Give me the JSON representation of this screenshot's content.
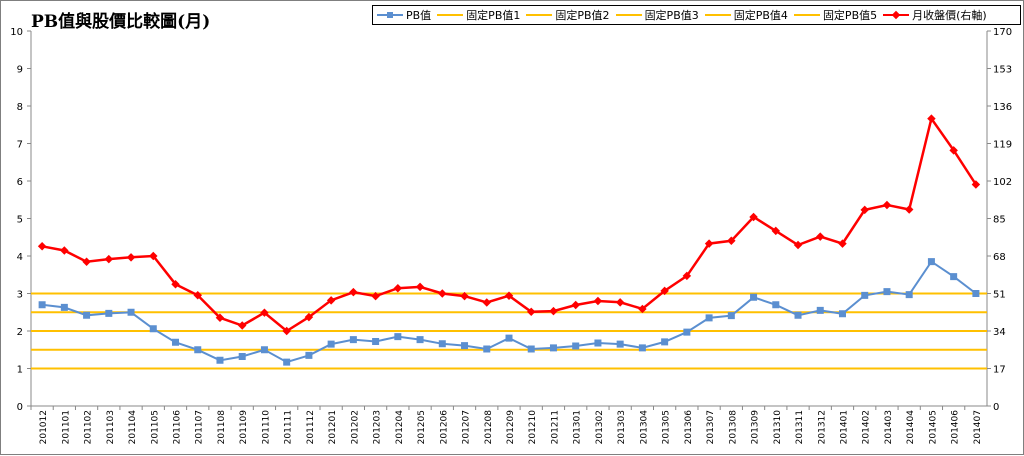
{
  "chart_data": {
    "type": "line",
    "title": "PB值與股價比較圖(月)",
    "categories": [
      "201012",
      "201101",
      "201102",
      "201103",
      "201104",
      "201105",
      "201106",
      "201107",
      "201108",
      "201109",
      "201110",
      "201111",
      "201112",
      "201201",
      "201202",
      "201203",
      "201204",
      "201205",
      "201206",
      "201207",
      "201208",
      "201209",
      "201210",
      "201211",
      "201301",
      "201302",
      "201303",
      "201304",
      "201305",
      "201306",
      "201307",
      "201308",
      "201309",
      "201310",
      "201311",
      "201312",
      "201401",
      "201402",
      "201403",
      "201404",
      "201405",
      "201406",
      "201407"
    ],
    "y_left": {
      "ylim": [
        0,
        10
      ],
      "ticks": [
        "0",
        "1",
        "2",
        "3",
        "4",
        "5",
        "6",
        "7",
        "8",
        "9",
        "10"
      ]
    },
    "y_right": {
      "ylim": [
        0,
        170
      ],
      "ticks": [
        "0",
        "17",
        "34",
        "51",
        "68",
        "85",
        "102",
        "119",
        "136",
        "153",
        "170"
      ]
    },
    "grid": false,
    "legend": "top-right",
    "series": [
      {
        "name": "PB值",
        "axis": "left",
        "color": "#5b8fd0",
        "marker": "square",
        "values": [
          2.7,
          2.63,
          2.42,
          2.47,
          2.5,
          2.06,
          1.7,
          1.5,
          1.22,
          1.32,
          1.5,
          1.17,
          1.35,
          1.65,
          1.77,
          1.72,
          1.85,
          1.77,
          1.66,
          1.61,
          1.52,
          1.81,
          1.52,
          1.55,
          1.6,
          1.68,
          1.65,
          1.55,
          1.71,
          1.97,
          2.35,
          2.41,
          2.9,
          2.7,
          2.42,
          2.55,
          2.46,
          2.95,
          3.05,
          2.97,
          3.85,
          3.45,
          3.0
        ]
      },
      {
        "name": "固定PB值1",
        "axis": "left",
        "color": "#ffc000",
        "constant": 1
      },
      {
        "name": "固定PB值2",
        "axis": "left",
        "color": "#ffc000",
        "constant": 1.5
      },
      {
        "name": "固定PB值3",
        "axis": "left",
        "color": "#ffc000",
        "constant": 2
      },
      {
        "name": "固定PB值4",
        "axis": "left",
        "color": "#ffc000",
        "constant": 2.5
      },
      {
        "name": "固定PB值5",
        "axis": "left",
        "color": "#ffc000",
        "constant": 3
      },
      {
        "name": "月收盤價(右軸)",
        "axis": "right",
        "color": "#ff0000",
        "marker": "diamond",
        "values": [
          72.4,
          70.5,
          65.4,
          66.6,
          67.4,
          68.0,
          55.2,
          50.2,
          40.0,
          36.5,
          42.3,
          34.0,
          40.3,
          47.9,
          51.6,
          49.8,
          53.4,
          54.0,
          51.0,
          49.8,
          46.9,
          50.0,
          42.7,
          43.0,
          45.8,
          47.6,
          47.0,
          44.0,
          52.2,
          59.0,
          73.6,
          74.9,
          85.7,
          79.4,
          73.0,
          76.8,
          73.6,
          88.9,
          91.1,
          89.1,
          130.3,
          115.9,
          100.4
        ]
      }
    ]
  }
}
